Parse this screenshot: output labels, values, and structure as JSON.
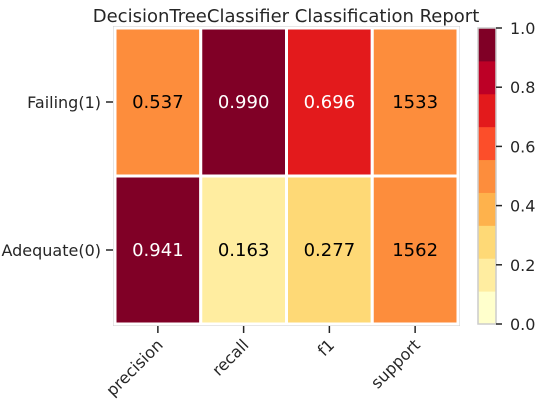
{
  "chart_data": {
    "type": "heatmap",
    "title": "DecisionTreeClassifier Classification Report",
    "xlabel": "",
    "ylabel": "",
    "columns": [
      "precision",
      "recall",
      "f1",
      "support"
    ],
    "rows": [
      "Failing(1)",
      "Adequate(0)"
    ],
    "cells": [
      {
        "text": "0.537",
        "level": 0.537,
        "color": "#fd8d3c",
        "text_color": "#000000"
      },
      {
        "text": "0.990",
        "level": 0.99,
        "color": "#800026",
        "text_color": "#ffffff"
      },
      {
        "text": "0.696",
        "level": 0.696,
        "color": "#e31a1c",
        "text_color": "#ffffff"
      },
      {
        "text": "1533",
        "level": 0.537,
        "color": "#fd8d3c",
        "text_color": "#000000"
      },
      {
        "text": "0.941",
        "level": 0.941,
        "color": "#800026",
        "text_color": "#ffffff"
      },
      {
        "text": "0.163",
        "level": 0.163,
        "color": "#ffeda0",
        "text_color": "#000000"
      },
      {
        "text": "0.277",
        "level": 0.277,
        "color": "#fed976",
        "text_color": "#000000"
      },
      {
        "text": "1562",
        "level": 0.537,
        "color": "#fd8d3c",
        "text_color": "#000000"
      }
    ],
    "colorbar": {
      "range": [
        0,
        1
      ],
      "ticks": [
        "0.0",
        "0.2",
        "0.4",
        "0.6",
        "0.8",
        "1.0"
      ],
      "bands": [
        "#ffffcc",
        "#ffeda0",
        "#fed976",
        "#feb24c",
        "#fd8d3c",
        "#fc4e2a",
        "#e31a1c",
        "#bd0026",
        "#800026"
      ]
    },
    "grid": false,
    "legend": "right colorbar"
  }
}
